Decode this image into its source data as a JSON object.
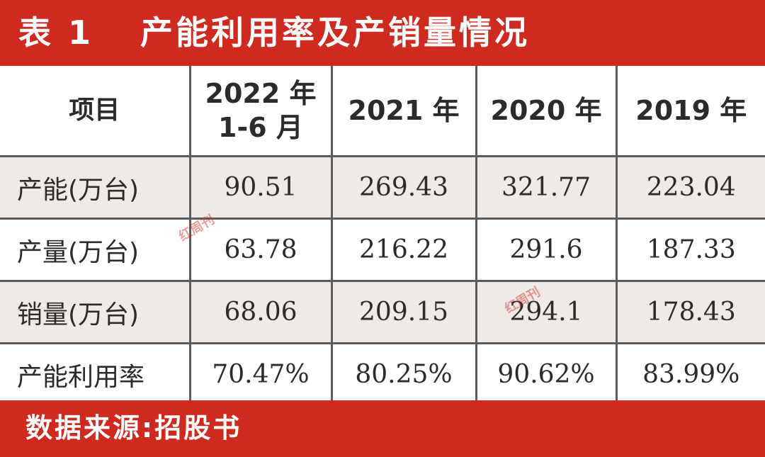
{
  "title": {
    "number": "表 1",
    "text": "产能利用率及产销量情况"
  },
  "table": {
    "headers": {
      "item": "项目",
      "col1_line1": "2022 年",
      "col1_line2": "1-6 月",
      "col2": "2021 年",
      "col3": "2020 年",
      "col4": "2019 年"
    },
    "rows": [
      {
        "label": "产能(万台)",
        "values": [
          "90.51",
          "269.43",
          "321.77",
          "223.04"
        ]
      },
      {
        "label": "产量(万台)",
        "values": [
          "63.78",
          "216.22",
          "291.6",
          "187.33"
        ]
      },
      {
        "label": "销量(万台)",
        "values": [
          "68.06",
          "209.15",
          "294.1",
          "178.43"
        ]
      },
      {
        "label": "产能利用率",
        "values": [
          "70.47%",
          "80.25%",
          "90.62%",
          "83.99%"
        ]
      }
    ]
  },
  "footer": {
    "source": "数据来源:招股书"
  },
  "watermark": {
    "text": "红周刊"
  },
  "colors": {
    "accent": "#cf2a1f",
    "shaded_row": "#efeae6",
    "grid": "#5b5b5b"
  }
}
